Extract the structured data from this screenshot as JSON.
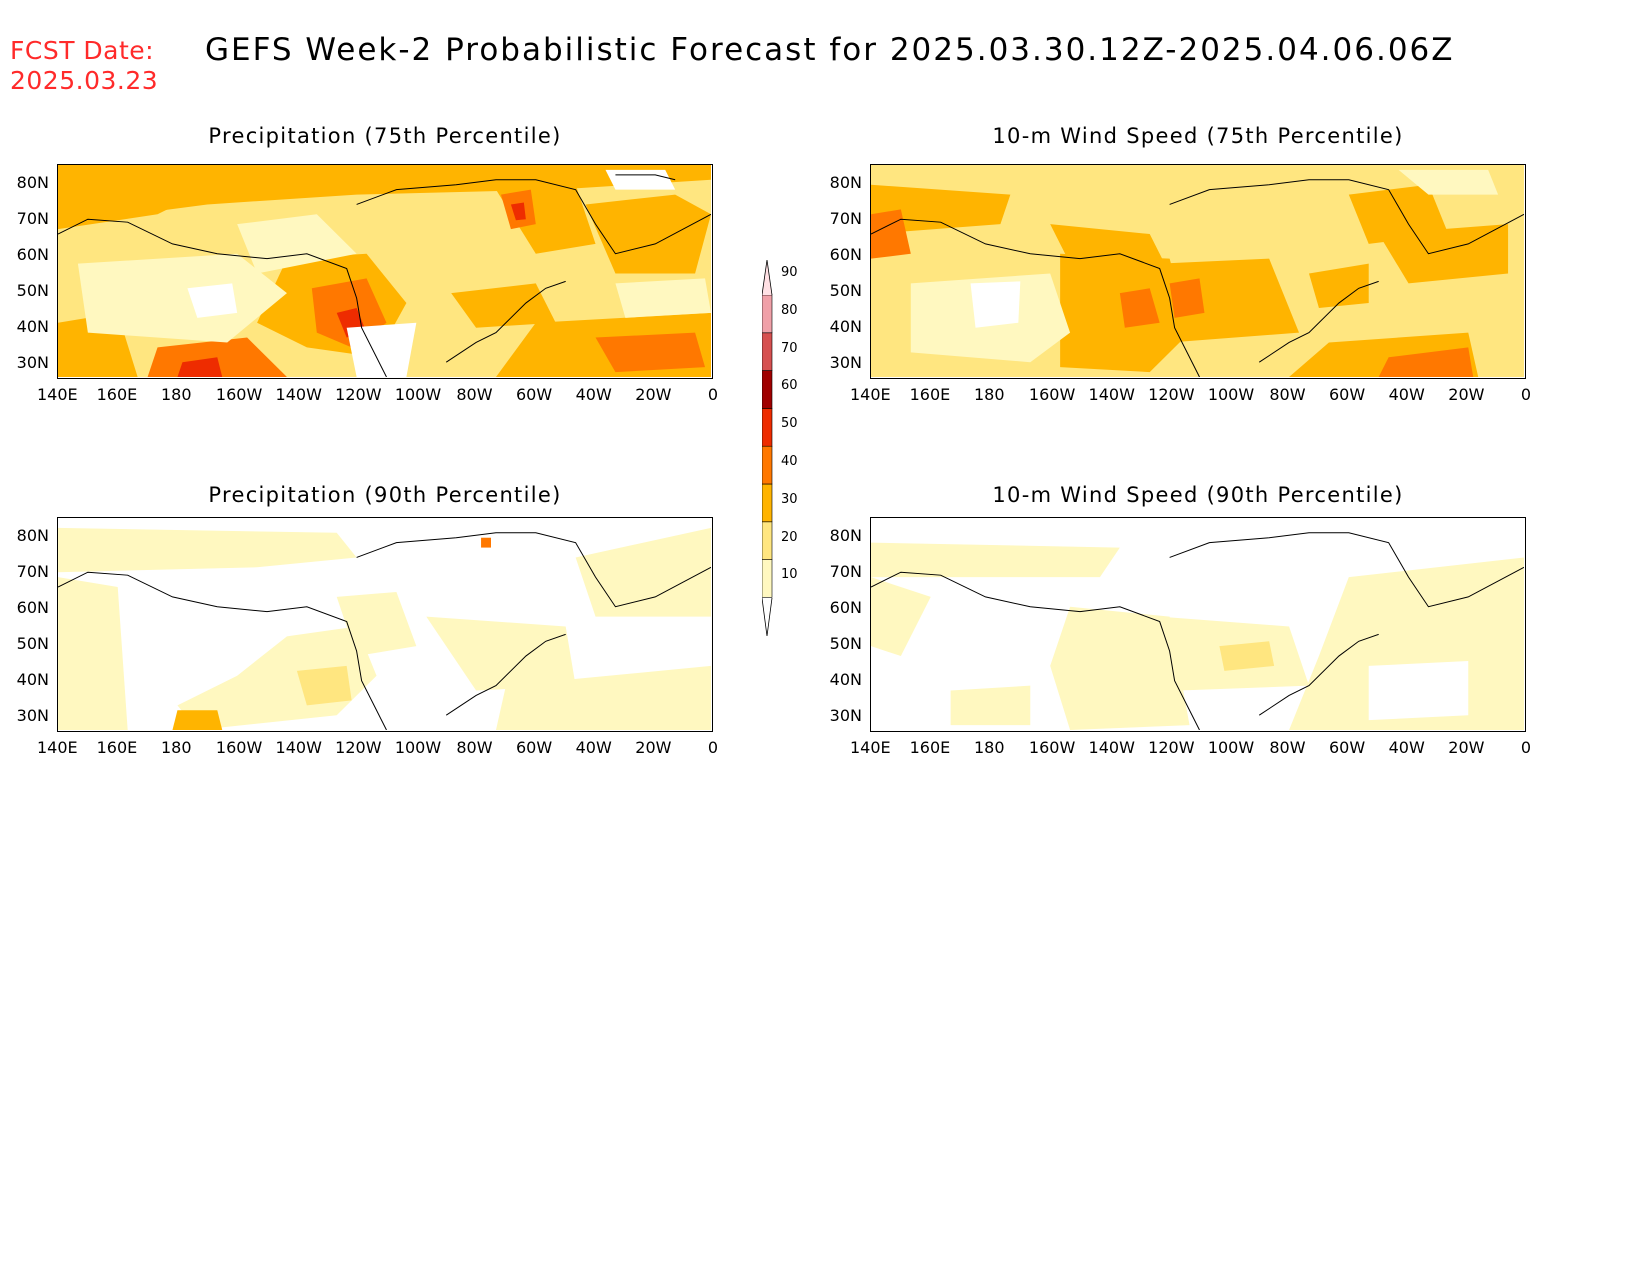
{
  "header": {
    "fcst_label": "FCST Date:",
    "fcst_date": "2025.03.23",
    "title": "GEFS Week-2 Probabilistic Forecast for 2025.03.30.12Z-2025.04.06.06Z"
  },
  "panels": [
    {
      "id": "p75",
      "title": "Precipitation (75th Percentile)"
    },
    {
      "id": "w75",
      "title": "10-m Wind Speed (75th Percentile)"
    },
    {
      "id": "p90",
      "title": "Precipitation (90th Percentile)"
    },
    {
      "id": "w90",
      "title": "10-m Wind Speed (90th Percentile)"
    }
  ],
  "axes": {
    "lat_labels": [
      "80N",
      "70N",
      "60N",
      "50N",
      "40N",
      "30N"
    ],
    "lon_labels": [
      "140E",
      "160E",
      "180",
      "160W",
      "140W",
      "120W",
      "100W",
      "80W",
      "60W",
      "40W",
      "20W",
      "0"
    ]
  },
  "colorbar": {
    "levels": [
      "10",
      "20",
      "30",
      "40",
      "50",
      "60",
      "70",
      "80",
      "90"
    ],
    "colors": [
      "#fff8c0",
      "#ffe680",
      "#ffb400",
      "#ff7800",
      "#ee2c00",
      "#a00000",
      "#d65050",
      "#f0a0a8",
      "#ffe0e4"
    ]
  }
}
